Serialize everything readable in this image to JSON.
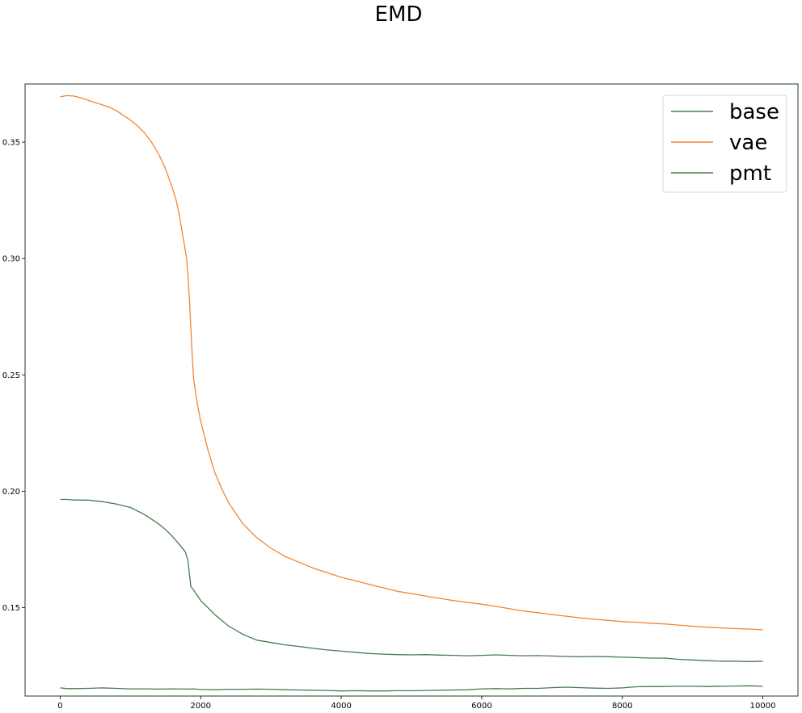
{
  "chart_data": {
    "type": "line",
    "title": "EMD",
    "xlabel": "",
    "ylabel": "",
    "xlim": [
      -500,
      10500
    ],
    "ylim": [
      0.112,
      0.375
    ],
    "x_ticks": [
      0,
      2000,
      4000,
      6000,
      8000,
      10000
    ],
    "x_tick_labels": [
      "0",
      "2000",
      "4000",
      "6000",
      "8000",
      "10000"
    ],
    "y_ticks": [
      0.15,
      0.2,
      0.25,
      0.3,
      0.35
    ],
    "y_tick_labels": [
      "0.15",
      "0.20",
      "0.25",
      "0.30",
      "0.35"
    ],
    "grid": false,
    "legend_position": "top-right",
    "series": [
      {
        "name": "base",
        "color": "#4a7a4d",
        "points": [
          [
            0,
            0.1155
          ],
          [
            100,
            0.1152
          ],
          [
            200,
            0.1152
          ],
          [
            400,
            0.1153
          ],
          [
            600,
            0.1155
          ],
          [
            800,
            0.1153
          ],
          [
            1000,
            0.1151
          ],
          [
            1200,
            0.1151
          ],
          [
            1400,
            0.115
          ],
          [
            1600,
            0.1151
          ],
          [
            1800,
            0.115
          ],
          [
            1900,
            0.1151
          ],
          [
            2000,
            0.1148
          ],
          [
            2200,
            0.1147
          ],
          [
            2400,
            0.1149
          ],
          [
            2600,
            0.1149
          ],
          [
            2800,
            0.115
          ],
          [
            3000,
            0.1149
          ],
          [
            3200,
            0.1147
          ],
          [
            3400,
            0.1146
          ],
          [
            3600,
            0.1145
          ],
          [
            3800,
            0.1144
          ],
          [
            4000,
            0.1142
          ],
          [
            4200,
            0.1143
          ],
          [
            4400,
            0.1142
          ],
          [
            4600,
            0.1142
          ],
          [
            4800,
            0.1143
          ],
          [
            5000,
            0.1143
          ],
          [
            5200,
            0.1144
          ],
          [
            5400,
            0.1145
          ],
          [
            5600,
            0.1146
          ],
          [
            5800,
            0.1147
          ],
          [
            6000,
            0.1151
          ],
          [
            6200,
            0.1152
          ],
          [
            6400,
            0.1151
          ],
          [
            6600,
            0.1153
          ],
          [
            6800,
            0.1153
          ],
          [
            7000,
            0.1156
          ],
          [
            7200,
            0.1158
          ],
          [
            7400,
            0.1156
          ],
          [
            7600,
            0.1154
          ],
          [
            7800,
            0.1153
          ],
          [
            8000,
            0.1155
          ],
          [
            8200,
            0.116
          ],
          [
            8400,
            0.1161
          ],
          [
            8600,
            0.1161
          ],
          [
            8800,
            0.1162
          ],
          [
            9000,
            0.1162
          ],
          [
            9200,
            0.1161
          ],
          [
            9400,
            0.1162
          ],
          [
            9600,
            0.1163
          ],
          [
            9800,
            0.1164
          ],
          [
            10000,
            0.1162
          ]
        ]
      },
      {
        "name": "vae",
        "color": "#ef8636",
        "points": [
          [
            0,
            0.3695
          ],
          [
            100,
            0.37
          ],
          [
            200,
            0.3698
          ],
          [
            300,
            0.369
          ],
          [
            400,
            0.368
          ],
          [
            500,
            0.367
          ],
          [
            600,
            0.366
          ],
          [
            700,
            0.365
          ],
          [
            800,
            0.3635
          ],
          [
            900,
            0.3615
          ],
          [
            1000,
            0.3595
          ],
          [
            1100,
            0.357
          ],
          [
            1200,
            0.354
          ],
          [
            1300,
            0.35
          ],
          [
            1400,
            0.345
          ],
          [
            1500,
            0.3385
          ],
          [
            1600,
            0.33
          ],
          [
            1650,
            0.325
          ],
          [
            1700,
            0.318
          ],
          [
            1750,
            0.309
          ],
          [
            1800,
            0.3
          ],
          [
            1820,
            0.292
          ],
          [
            1840,
            0.282
          ],
          [
            1860,
            0.27
          ],
          [
            1880,
            0.258
          ],
          [
            1900,
            0.248
          ],
          [
            1950,
            0.238
          ],
          [
            2000,
            0.23
          ],
          [
            2100,
            0.218
          ],
          [
            2200,
            0.208
          ],
          [
            2300,
            0.201
          ],
          [
            2400,
            0.195
          ],
          [
            2600,
            0.186
          ],
          [
            2800,
            0.18
          ],
          [
            3000,
            0.1755
          ],
          [
            3200,
            0.172
          ],
          [
            3400,
            0.1695
          ],
          [
            3600,
            0.167
          ],
          [
            3800,
            0.165
          ],
          [
            4000,
            0.163
          ],
          [
            4200,
            0.1615
          ],
          [
            4400,
            0.16
          ],
          [
            4600,
            0.1585
          ],
          [
            4800,
            0.157
          ],
          [
            5000,
            0.156
          ],
          [
            5200,
            0.155
          ],
          [
            5400,
            0.154
          ],
          [
            5600,
            0.153
          ],
          [
            5800,
            0.1522
          ],
          [
            6000,
            0.1515
          ],
          [
            6200,
            0.1505
          ],
          [
            6400,
            0.1495
          ],
          [
            6600,
            0.1485
          ],
          [
            6800,
            0.1478
          ],
          [
            7000,
            0.147
          ],
          [
            7200,
            0.1463
          ],
          [
            7400,
            0.1456
          ],
          [
            7600,
            0.145
          ],
          [
            7800,
            0.1445
          ],
          [
            8000,
            0.144
          ],
          [
            8200,
            0.1437
          ],
          [
            8400,
            0.1433
          ],
          [
            8600,
            0.143
          ],
          [
            8800,
            0.1425
          ],
          [
            9000,
            0.142
          ],
          [
            9200,
            0.1416
          ],
          [
            9400,
            0.1413
          ],
          [
            9600,
            0.141
          ],
          [
            9800,
            0.1408
          ],
          [
            10000,
            0.1405
          ]
        ]
      },
      {
        "name": "pmt",
        "color": "#4a7a4d",
        "points": [
          [
            0,
            0.1965
          ],
          [
            100,
            0.1965
          ],
          [
            200,
            0.1962
          ],
          [
            400,
            0.1962
          ],
          [
            600,
            0.1955
          ],
          [
            800,
            0.1945
          ],
          [
            1000,
            0.193
          ],
          [
            1200,
            0.19
          ],
          [
            1400,
            0.186
          ],
          [
            1500,
            0.1835
          ],
          [
            1600,
            0.1805
          ],
          [
            1700,
            0.177
          ],
          [
            1780,
            0.174
          ],
          [
            1820,
            0.17
          ],
          [
            1840,
            0.164
          ],
          [
            1860,
            0.159
          ],
          [
            1900,
            0.1575
          ],
          [
            2000,
            0.153
          ],
          [
            2200,
            0.147
          ],
          [
            2400,
            0.142
          ],
          [
            2600,
            0.1385
          ],
          [
            2800,
            0.136
          ],
          [
            3000,
            0.135
          ],
          [
            3200,
            0.134
          ],
          [
            3400,
            0.1333
          ],
          [
            3600,
            0.1325
          ],
          [
            3800,
            0.1318
          ],
          [
            4000,
            0.1313
          ],
          [
            4200,
            0.1308
          ],
          [
            4400,
            0.1303
          ],
          [
            4600,
            0.13
          ],
          [
            4800,
            0.1298
          ],
          [
            5000,
            0.1297
          ],
          [
            5200,
            0.1298
          ],
          [
            5400,
            0.1296
          ],
          [
            5600,
            0.1295
          ],
          [
            5800,
            0.1293
          ],
          [
            6000,
            0.1295
          ],
          [
            6200,
            0.1297
          ],
          [
            6400,
            0.1295
          ],
          [
            6600,
            0.1293
          ],
          [
            6800,
            0.1294
          ],
          [
            7000,
            0.1292
          ],
          [
            7200,
            0.129
          ],
          [
            7400,
            0.1289
          ],
          [
            7600,
            0.129
          ],
          [
            7800,
            0.1289
          ],
          [
            8000,
            0.1287
          ],
          [
            8200,
            0.1285
          ],
          [
            8400,
            0.1283
          ],
          [
            8600,
            0.1283
          ],
          [
            8800,
            0.1278
          ],
          [
            9000,
            0.1275
          ],
          [
            9200,
            0.1272
          ],
          [
            9400,
            0.127
          ],
          [
            9600,
            0.127
          ],
          [
            9800,
            0.1268
          ],
          [
            10000,
            0.127
          ]
        ]
      }
    ]
  }
}
